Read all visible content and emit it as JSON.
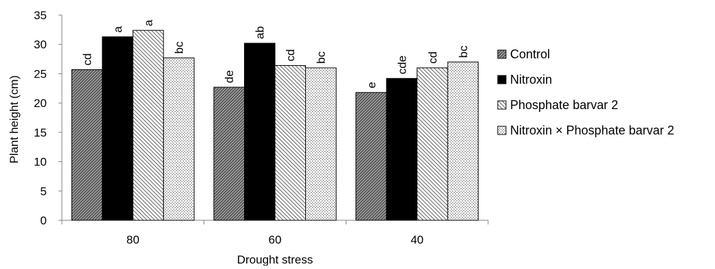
{
  "chart_data": {
    "type": "bar",
    "title": "",
    "xlabel": "Drought stress",
    "ylabel": "Plant height (cm)",
    "ylim": [
      0,
      35
    ],
    "yticks": [
      0,
      5,
      10,
      15,
      20,
      25,
      30,
      35
    ],
    "grid": false,
    "legend_position": "right",
    "categories": [
      "80",
      "60",
      "40"
    ],
    "series": [
      {
        "name": "Control",
        "pattern": "dense-diagonal",
        "color": "#555555",
        "values": [
          25.7,
          22.7,
          21.8
        ],
        "labels": [
          "cd",
          "de",
          "e"
        ]
      },
      {
        "name": "Nitroxin",
        "pattern": "solid",
        "color": "#000000",
        "values": [
          31.3,
          30.2,
          24.2
        ],
        "labels": [
          "a",
          "ab",
          "cde"
        ]
      },
      {
        "name": "Phosphate barvar 2",
        "pattern": "diagonal-hatch",
        "color": "#666666",
        "values": [
          32.4,
          26.4,
          26.0
        ],
        "labels": [
          "a",
          "cd",
          "cd"
        ]
      },
      {
        "name": "Nitroxin  × Phosphate barvar 2",
        "pattern": "dots",
        "color": "#999999",
        "values": [
          27.7,
          26.0,
          27.0
        ],
        "labels": [
          "bc",
          "bc",
          "bc"
        ]
      }
    ]
  }
}
